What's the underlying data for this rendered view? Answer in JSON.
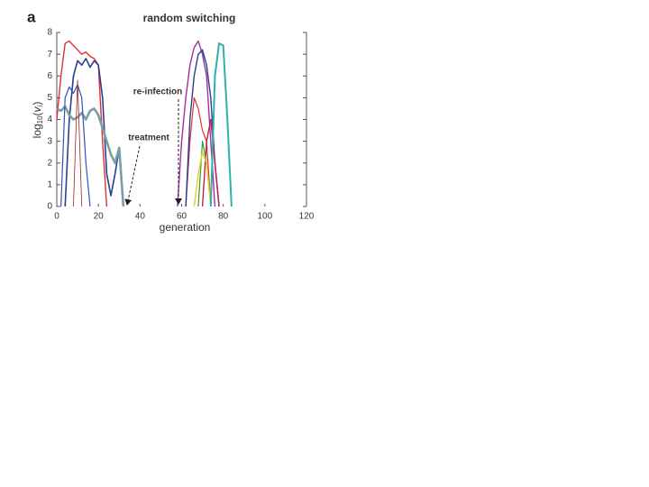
{
  "chart_data": {
    "type": "line",
    "panel_label": "a",
    "title": "random switching",
    "x_label": "generation",
    "y_label_parts": [
      "log",
      "10",
      "(",
      "v",
      "i",
      ")"
    ],
    "xlim": [
      0,
      120
    ],
    "ylim": [
      0,
      8
    ],
    "xticks": [
      0,
      20,
      40,
      60,
      80,
      100,
      120
    ],
    "yticks": [
      0,
      1,
      2,
      3,
      4,
      5,
      6,
      7,
      8
    ],
    "grid": false,
    "annotations": [
      "re-infection",
      "treatment"
    ],
    "series": [
      {
        "color": "#e03030",
        "width": 1.4,
        "x": [
          0,
          2,
          4,
          6,
          8,
          10,
          12,
          14,
          16,
          18,
          20,
          22,
          24
        ],
        "values": [
          4,
          6,
          7.5,
          7.6,
          7.4,
          7.2,
          7,
          7.1,
          6.9,
          6.8,
          6.5,
          3,
          0
        ]
      },
      {
        "color": "#2a3f8f",
        "width": 1.6,
        "x": [
          4,
          6,
          8,
          10,
          12,
          14,
          16,
          18,
          20,
          22,
          24,
          26,
          28,
          30,
          32
        ],
        "values": [
          0,
          4,
          6,
          6.7,
          6.5,
          6.8,
          6.4,
          6.7,
          6.5,
          5,
          1.5,
          0.5,
          1.5,
          2.7,
          0
        ]
      },
      {
        "color": "#7a9ea3",
        "width": 2.6,
        "x": [
          0,
          2,
          4,
          6,
          8,
          10,
          12,
          14,
          16,
          18,
          20,
          22,
          24,
          26,
          28,
          30,
          32
        ],
        "values": [
          4.5,
          4.4,
          4.6,
          4.2,
          4,
          4.1,
          4.3,
          4,
          4.4,
          4.5,
          4.2,
          3.6,
          3,
          2.4,
          2,
          2.7,
          0
        ]
      },
      {
        "color": "#3050c0",
        "width": 1.2,
        "x": [
          2,
          4,
          6,
          8,
          10,
          12,
          14,
          16
        ],
        "values": [
          0,
          5,
          5.5,
          5.2,
          5.6,
          5,
          2,
          0
        ]
      },
      {
        "color": "#a02020",
        "width": 0.8,
        "x": [
          8,
          10,
          12
        ],
        "values": [
          0,
          5.8,
          0
        ]
      },
      {
        "color": "#a030a0",
        "width": 1.4,
        "x": [
          58,
          60,
          62,
          64,
          66,
          68,
          70,
          72,
          74,
          76
        ],
        "values": [
          0,
          3,
          5,
          6.5,
          7.3,
          7.6,
          7,
          6,
          3,
          0
        ]
      },
      {
        "color": "#e03030",
        "width": 1.2,
        "x": [
          62,
          64,
          66,
          68,
          70,
          72,
          74
        ],
        "values": [
          0,
          3,
          5,
          4.5,
          3.5,
          3,
          0
        ]
      },
      {
        "color": "#2a3f8f",
        "width": 1.4,
        "x": [
          62,
          64,
          66,
          68,
          70,
          72,
          74,
          76,
          78
        ],
        "values": [
          0,
          4,
          6,
          7,
          7.2,
          6.5,
          5,
          2,
          0
        ]
      },
      {
        "color": "#c02050",
        "width": 1.4,
        "x": [
          70,
          72,
          74,
          76,
          78
        ],
        "values": [
          0,
          3,
          4,
          2,
          0
        ]
      },
      {
        "color": "#30a030",
        "width": 1.2,
        "x": [
          68,
          70,
          72,
          74
        ],
        "values": [
          0,
          3,
          2,
          0
        ]
      },
      {
        "color": "#e8d020",
        "width": 1.4,
        "x": [
          66,
          68,
          70,
          72,
          74
        ],
        "values": [
          0,
          1.5,
          2.5,
          2,
          0
        ]
      },
      {
        "color": "#30b0b0",
        "width": 2,
        "x": [
          74,
          76,
          78,
          80,
          82,
          84
        ],
        "values": [
          0,
          6,
          7.5,
          7.4,
          4,
          0
        ]
      }
    ]
  }
}
